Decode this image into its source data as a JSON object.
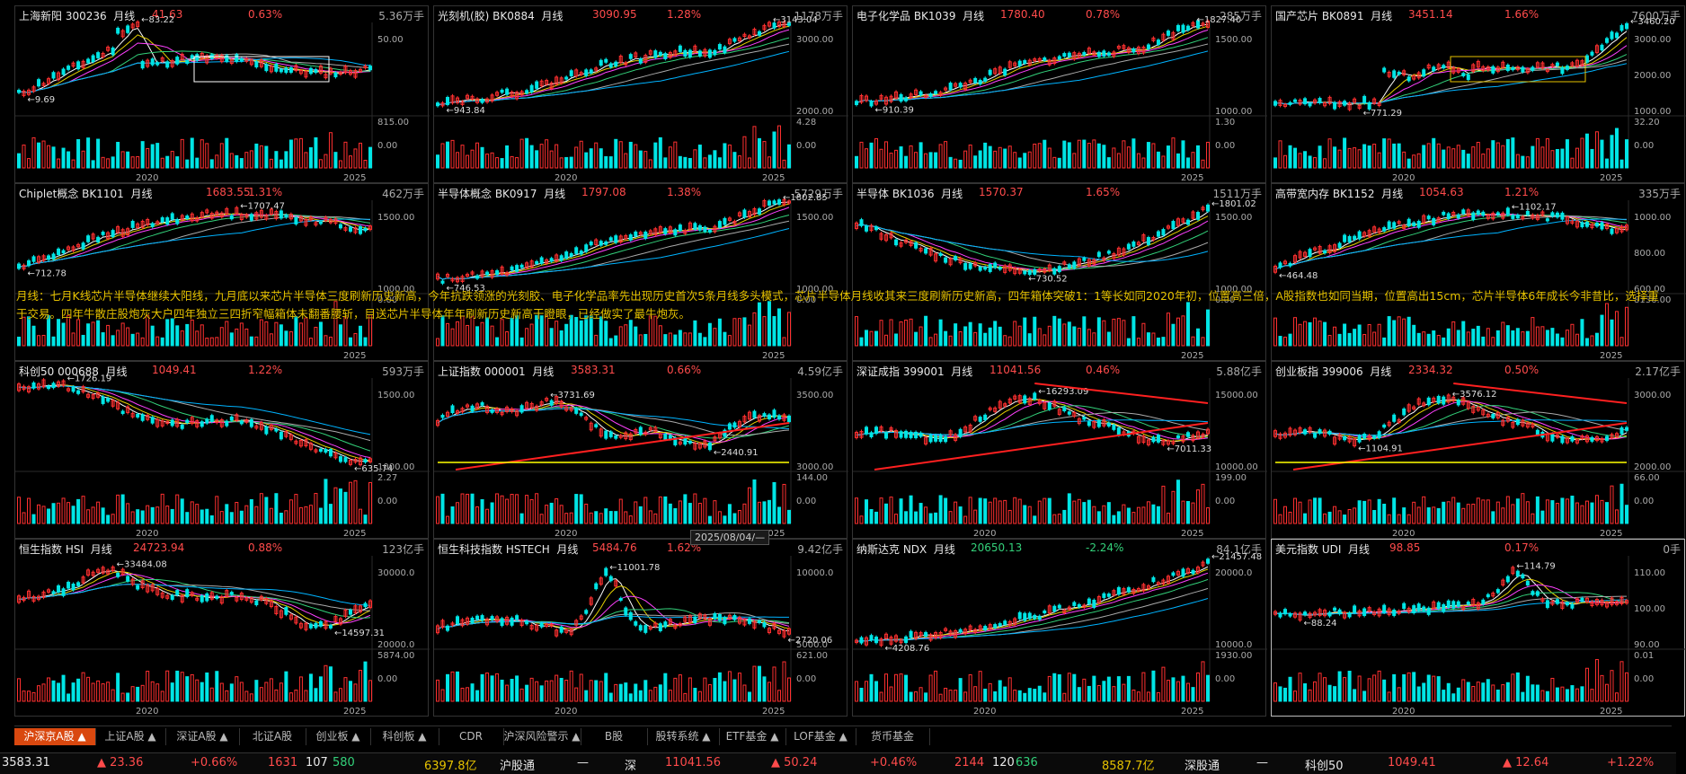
{
  "panels": [
    {
      "name": "上海新阳",
      "code": "300236",
      "period": "月线",
      "price": "41.63",
      "pct": "0.63%",
      "vol": "5.36万手",
      "dir": "up",
      "hi_label": "83.22",
      "lo_label": "9.69",
      "yticks": [
        "50.00"
      ],
      "vticks": [
        "815.00",
        "0.00"
      ],
      "xticks": [
        "2020",
        "2025"
      ],
      "seed": 11,
      "trend": "range",
      "box": true
    },
    {
      "name": "光刻机(胶)",
      "code": "BK0884",
      "period": "月线",
      "price": "3090.95",
      "pct": "1.28%",
      "vol": "1178万手",
      "dir": "up",
      "hi_label": "3143.04",
      "lo_label": "943.84",
      "yticks": [
        "3000.00",
        "2000.00"
      ],
      "vticks": [
        "4.28",
        "0.00"
      ],
      "xticks": [
        "2020",
        "2025"
      ],
      "seed": 22,
      "trend": "rise"
    },
    {
      "name": "电子化学品",
      "code": "BK1039",
      "period": "月线",
      "price": "1780.40",
      "pct": "0.78%",
      "vol": "285万手",
      "dir": "up",
      "hi_label": "1827.40",
      "lo_label": "910.39",
      "yticks": [
        "1500.00",
        "1000.00"
      ],
      "vticks": [
        "1.30",
        "0.00"
      ],
      "xticks": [
        "2025"
      ],
      "seed": 33,
      "trend": "rise"
    },
    {
      "name": "国产芯片",
      "code": "BK0891",
      "period": "月线",
      "price": "3451.14",
      "pct": "1.66%",
      "vol": "7600万手",
      "dir": "up",
      "hi_label": "3460.20",
      "lo_label": "771.29",
      "yticks": [
        "3000.00",
        "2000.00",
        "1000.00"
      ],
      "vticks": [
        "32.20",
        "0.00"
      ],
      "xticks": [
        "2020",
        "2025"
      ],
      "seed": 44,
      "trend": "steps",
      "box": true
    },
    {
      "name": "Chiplet概念",
      "code": "BK1101",
      "period": "月线",
      "price": "1683.55",
      "pct": "1.31%",
      "vol": "462万手",
      "dir": "up",
      "hi_label": "1707.47",
      "lo_label": "712.78",
      "yticks": [
        "1500.00",
        "1000.00"
      ],
      "vticks": [
        "0.00"
      ],
      "xticks": [
        "2025"
      ],
      "seed": 55,
      "trend": "short"
    },
    {
      "name": "半导体概念",
      "code": "BK0917",
      "period": "月线",
      "price": "1797.08",
      "pct": "1.38%",
      "vol": "5729万手",
      "dir": "up",
      "hi_label": "1802.85",
      "lo_label": "746.53",
      "yticks": [
        "1500.00",
        "1000.00"
      ],
      "vticks": [
        "0.00"
      ],
      "xticks": [
        "2025"
      ],
      "seed": 66,
      "trend": "rise"
    },
    {
      "name": "半导体",
      "code": "BK1036",
      "period": "月线",
      "price": "1570.37",
      "pct": "1.65%",
      "vol": "1511万手",
      "dir": "up",
      "hi_label": "1801.02",
      "lo_label": "730.52",
      "yticks": [
        "1500.00",
        "1000.00"
      ],
      "vticks": [
        "0.00"
      ],
      "xticks": [
        "2025"
      ],
      "seed": 77,
      "trend": "vshape"
    },
    {
      "name": "高带宽内存",
      "code": "BK1152",
      "period": "月线",
      "price": "1054.63",
      "pct": "1.21%",
      "vol": "335万手",
      "dir": "up",
      "hi_label": "1102.17",
      "lo_label": "464.48",
      "yticks": [
        "1000.00",
        "800.00",
        "600.00"
      ],
      "vticks": [
        "8136.00"
      ],
      "xticks": [
        "2025"
      ],
      "seed": 88,
      "trend": "short"
    },
    {
      "name": "科创50",
      "code": "000688",
      "period": "月线",
      "price": "1049.41",
      "pct": "1.22%",
      "vol": "593万手",
      "dir": "up",
      "hi_label": "1726.19",
      "lo_label": "635.74",
      "yticks": [
        "1500.00",
        "1000.00"
      ],
      "vticks": [
        "2.27",
        "0.00"
      ],
      "xticks": [
        "2020",
        "2025"
      ],
      "seed": 99,
      "trend": "fall"
    },
    {
      "name": "上证指数",
      "code": "000001",
      "period": "月线",
      "price": "3583.31",
      "pct": "0.66%",
      "vol": "4.59亿手",
      "dir": "up",
      "hi_label": "3731.69",
      "lo_label": "2440.91",
      "yticks": [
        "3500.00",
        "3000.00"
      ],
      "vticks": [
        "144.00",
        "0.00"
      ],
      "xticks": [
        "2020",
        "2025"
      ],
      "seed": 111,
      "trend": "wave",
      "redline": true,
      "yelline": true
    },
    {
      "name": "深证成指",
      "code": "399001",
      "period": "月线",
      "price": "11041.56",
      "pct": "0.46%",
      "vol": "5.88亿手",
      "dir": "up",
      "hi_label": "16293.09",
      "lo_label": "7011.33",
      "yticks": [
        "15000.00",
        "10000.00"
      ],
      "vticks": [
        "199.00",
        "0.00"
      ],
      "xticks": [
        "2020",
        "2025"
      ],
      "seed": 122,
      "trend": "hump",
      "redline": true,
      "redtop": true
    },
    {
      "name": "创业板指",
      "code": "399006",
      "period": "月线",
      "price": "2334.32",
      "pct": "0.50%",
      "vol": "2.17亿手",
      "dir": "up",
      "hi_label": "3576.12",
      "lo_label": "1104.91",
      "yticks": [
        "3000.00",
        "2000.00"
      ],
      "vticks": [
        "66.00",
        "0.00"
      ],
      "xticks": [
        "2020",
        "2025"
      ],
      "seed": 133,
      "trend": "hump",
      "redline": true,
      "redtop": true,
      "yelline": true
    },
    {
      "name": "恒生指数",
      "code": "HSI",
      "period": "月线",
      "price": "24723.94",
      "pct": "0.88%",
      "vol": "123亿手",
      "dir": "up",
      "hi_label": "33484.08",
      "lo_label": "14597.31",
      "yticks": [
        "30000.0",
        "20000.0"
      ],
      "vticks": [
        "5874.00",
        "0.00"
      ],
      "xticks": [
        "2020",
        "2025"
      ],
      "seed": 144,
      "trend": "fall2"
    },
    {
      "name": "恒生科技指数",
      "code": "HSTECH",
      "period": "月线",
      "price": "5484.76",
      "pct": "1.62%",
      "vol": "9.42亿手",
      "dir": "up",
      "hi_label": "11001.78",
      "lo_label": "2720.06",
      "yticks": [
        "10000.0",
        "5000.0"
      ],
      "vticks": [
        "621.00",
        "0.00"
      ],
      "xticks": [
        "2020",
        "2025"
      ],
      "seed": 155,
      "trend": "spike"
    },
    {
      "name": "纳斯达克",
      "code": "NDX",
      "period": "月线",
      "price": "20650.13",
      "pct": "-2.24%",
      "vol": "84.1亿手",
      "dir": "dn",
      "hi_label": "21457.48",
      "lo_label": "4208.76",
      "yticks": [
        "20000.0",
        "10000.0"
      ],
      "vticks": [
        "1930.00",
        "0.00"
      ],
      "xticks": [
        "2020",
        "2025"
      ],
      "seed": 166,
      "trend": "expo"
    },
    {
      "name": "美元指数",
      "code": "UDI",
      "period": "月线",
      "price": "98.85",
      "pct": "0.17%",
      "vol": "0手",
      "dir": "up",
      "hi_label": "114.79",
      "lo_label": "88.24",
      "yticks": [
        "110.00",
        "100.00",
        "90.00"
      ],
      "vticks": [
        "0.01",
        "0.00"
      ],
      "xticks": [
        "2020",
        "2025"
      ],
      "seed": 177,
      "trend": "usd",
      "selected": true
    }
  ],
  "annotation": "月线：七月K线芯片半导体继续大阳线，九月底以来芯片半导体三度刷新历史新高，今年抗跌领涨的光刻胶、电子化学品率先出现历史首次5条月线多头模式，芯片半导体月线收其来三度刷新历史新高，四年箱体突破1：1等长如同2020年初，位置高三倍，A股指数也如同当期，位置高出15cm，芯片半导体6年成长今非昔比，选择重于交易。四年牛散庄股炮灰大户四年独立三四折窄幅箱体未翻番腰斩，目送芯片半导体年年刷新历史新高干瞪眼，已经做实了最牛炮灰。",
  "tooltip": "2025/08/04/—",
  "tabs": [
    {
      "label": "沪深京A股",
      "active": true
    },
    {
      "label": "上证A股"
    },
    {
      "label": "深证A股"
    },
    {
      "label": "北证A股"
    },
    {
      "label": "创业板"
    },
    {
      "label": "科创板"
    },
    {
      "label": "CDR"
    },
    {
      "label": "沪深风险警示"
    },
    {
      "label": "B股"
    },
    {
      "label": "股转系统"
    },
    {
      "label": "ETF基金"
    },
    {
      "label": "LOF基金"
    },
    {
      "label": "货币基金"
    }
  ],
  "status": {
    "sh_price": "3583.31",
    "sh_chg": "▲ 23.36",
    "sh_pct": "+0.66%",
    "sh_up": "1631",
    "sh_flat": "107",
    "sh_dn": "580",
    "sh_amt": "6397.8亿",
    "hgt": "沪股通",
    "hgt_val": "—",
    "sz_label": "深",
    "sz_price": "11041.56",
    "sz_chg": "▲ 50.24",
    "sz_pct": "+0.46%",
    "sz_up": "2144",
    "sz_flat": "120",
    "sz_dn": "636",
    "sz_amt": "8587.7亿",
    "sgt": "深股通",
    "sgt_val": "—",
    "kc_label": "科创50",
    "kc_price": "1049.41",
    "kc_chg": "▲ 12.64",
    "kc_pct": "+1.22%"
  },
  "colors": {
    "up": "#ff4b4b",
    "down": "#33d17a",
    "candle_up": "#ff3030",
    "candle_dn": "#00e5e5",
    "ma5": "#ffffff",
    "ma10": "#e6d200",
    "ma20": "#ff40ff",
    "ma60": "#33d17a",
    "ma120": "#aaaaaa",
    "ma250": "#00b3ff",
    "accent": "#d9480f"
  }
}
